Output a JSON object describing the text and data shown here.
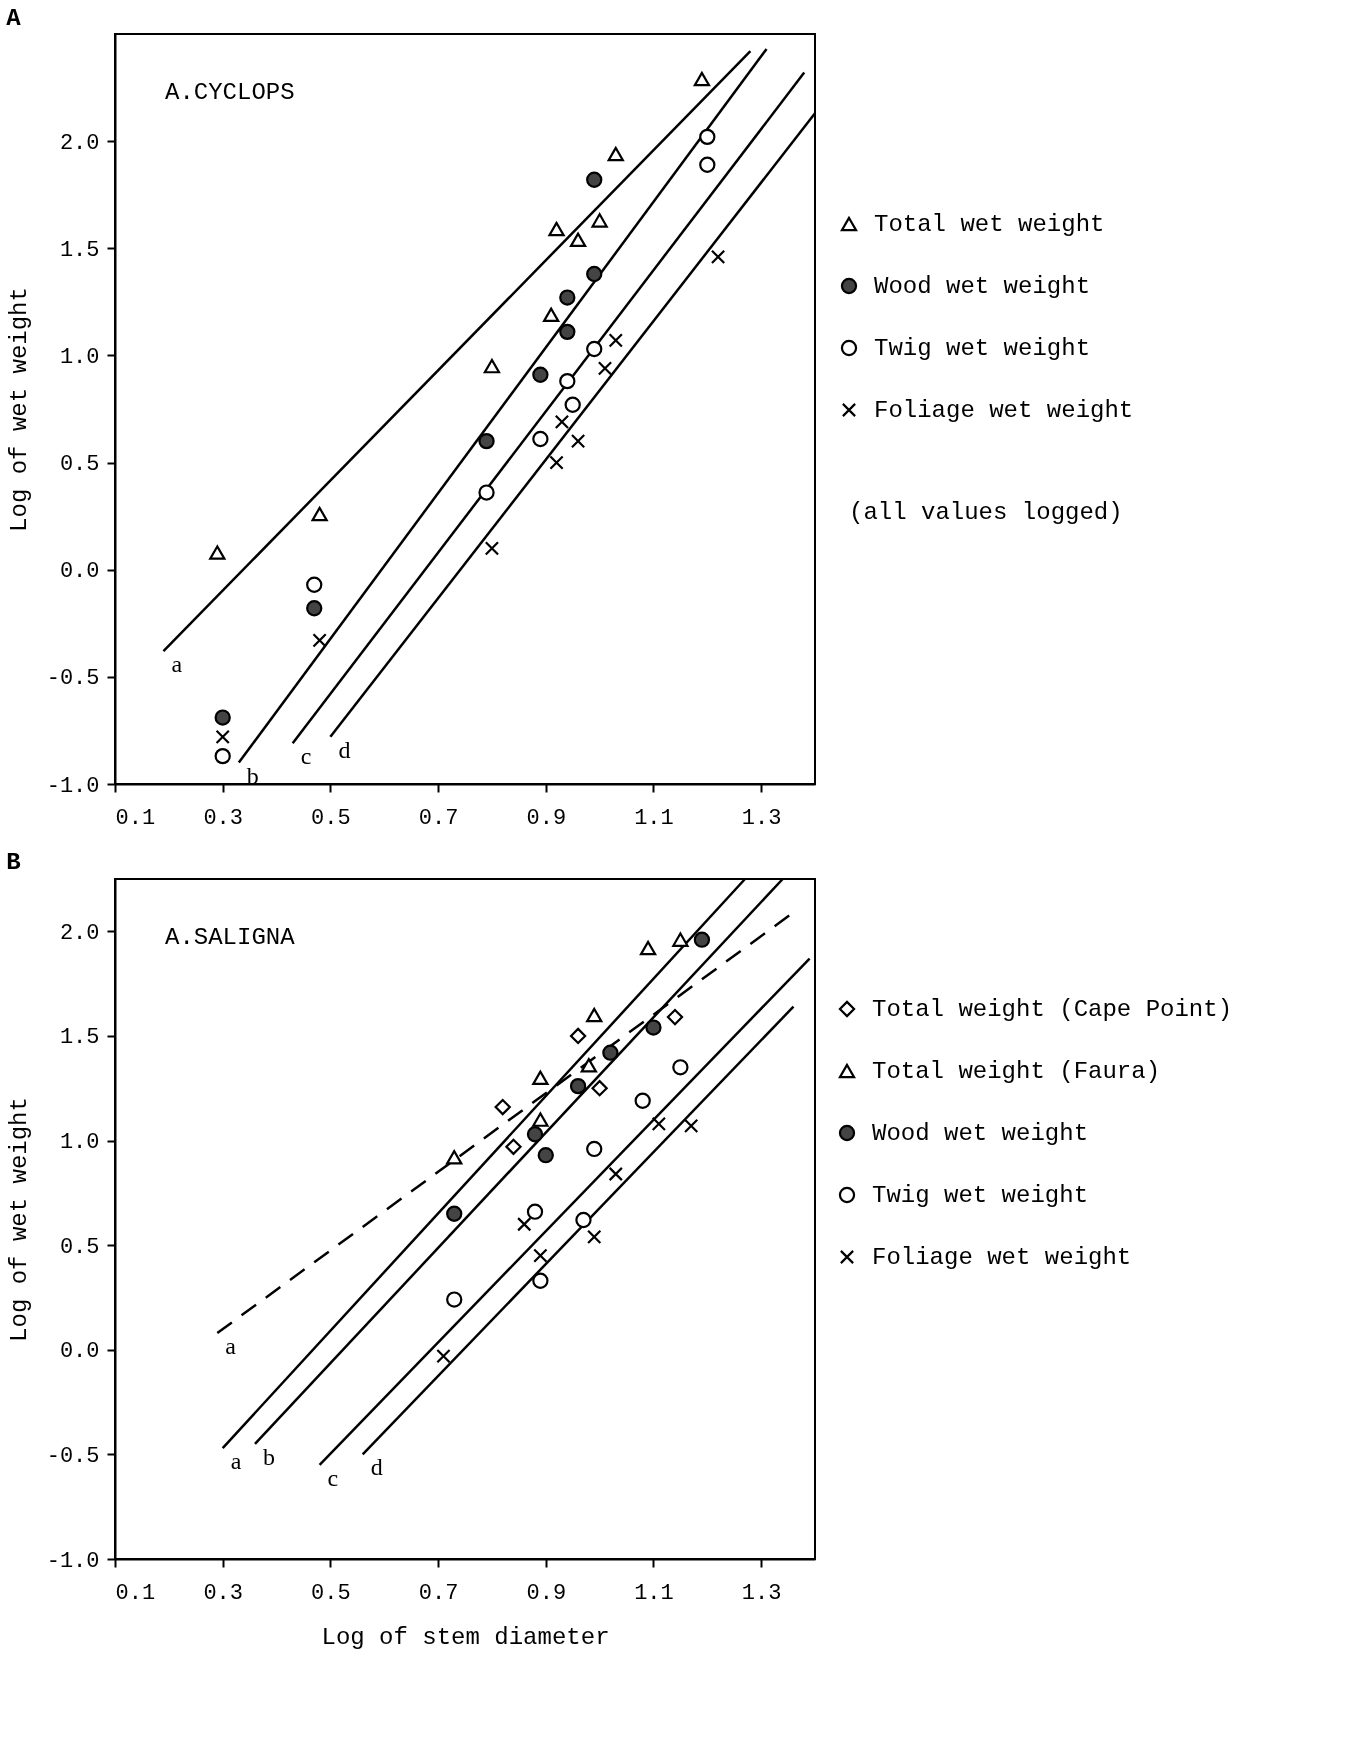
{
  "chart_data": [
    {
      "type": "scatter",
      "title": "A",
      "subtitle": "A.CYCLOPS",
      "ylabel": "Log of wet weight",
      "xlim": [
        0.1,
        1.4
      ],
      "ylim": [
        -1.0,
        2.5
      ],
      "xticks": [
        0.1,
        0.3,
        0.5,
        0.7,
        0.9,
        1.1,
        1.3
      ],
      "yticks": [
        {
          "value": -1.0,
          "label": "-1.0"
        },
        {
          "value": -0.5,
          "label": "-0.5"
        },
        {
          "value": 0,
          "label": "0.0"
        },
        {
          "value": 0.5,
          "label": "0.5"
        },
        {
          "value": 1.0,
          "label": "1.0"
        },
        {
          "value": 1.5,
          "label": "1.5"
        },
        {
          "value": 2.0,
          "label": "2.0"
        }
      ],
      "legend": "right",
      "series": [
        {
          "name": "Total wet weight",
          "marker": "triangle",
          "color": "#ffffff",
          "x": [
            1.19,
            1.03,
            0.92,
            0.96,
            1.0,
            0.91,
            0.8,
            0.29,
            0.48
          ],
          "values": [
            2.29,
            1.94,
            1.59,
            1.54,
            1.63,
            1.19,
            0.95,
            0.08,
            0.26
          ]
        },
        {
          "name": "Wood wet weight",
          "marker": "circle",
          "color": "#444444",
          "x": [
            0.99,
            0.99,
            0.94,
            0.94,
            0.89,
            0.79,
            0.47,
            0.3
          ],
          "values": [
            1.82,
            1.38,
            1.27,
            1.11,
            0.91,
            0.6,
            -0.18,
            -0.69
          ]
        },
        {
          "name": "Twig wet weight",
          "marker": "circle",
          "color": "#ffffff",
          "x": [
            1.2,
            1.2,
            0.99,
            0.94,
            0.95,
            0.89,
            0.79,
            0.47,
            0.3
          ],
          "values": [
            2.02,
            1.89,
            1.03,
            0.88,
            0.77,
            0.61,
            0.36,
            -0.07,
            -0.87
          ]
        },
        {
          "name": "Foliage wet weight",
          "marker": "cross",
          "color": "#000000",
          "x": [
            1.22,
            1.03,
            1.01,
            0.93,
            0.96,
            0.92,
            0.8,
            0.48,
            0.3
          ],
          "values": [
            1.46,
            1.07,
            0.94,
            0.69,
            0.6,
            0.5,
            0.1,
            -0.33,
            -0.78
          ]
        },
        {
          "name": "a",
          "type": "line",
          "line_style": "solid",
          "color": "#000000",
          "x": [
            0.19,
            1.28
          ],
          "values": [
            -0.38,
            2.42
          ]
        },
        {
          "name": "b",
          "type": "line",
          "line_style": "solid",
          "color": "#000000",
          "x": [
            0.33,
            1.31
          ],
          "values": [
            -0.9,
            2.43
          ]
        },
        {
          "name": "c",
          "type": "line",
          "line_style": "solid",
          "color": "#000000",
          "x": [
            0.43,
            1.38
          ],
          "values": [
            -0.81,
            2.32
          ]
        },
        {
          "name": "d",
          "type": "line",
          "line_style": "solid",
          "color": "#000000",
          "x": [
            0.5,
            1.4
          ],
          "values": [
            -0.78,
            2.13
          ]
        }
      ],
      "annotations": [
        "(all values logged)"
      ]
    },
    {
      "type": "scatter",
      "title": "B",
      "subtitle": "A.SALIGNA",
      "xlabel": "Log of stem diameter",
      "ylabel": "Log of wet weight",
      "xlim": [
        0.1,
        1.4
      ],
      "ylim": [
        -1.0,
        2.25
      ],
      "xticks": [
        0.1,
        0.3,
        0.5,
        0.7,
        0.9,
        1.1,
        1.3
      ],
      "yticks": [
        {
          "value": -1.0,
          "label": "-1.0"
        },
        {
          "value": -0.5,
          "label": "-0.5"
        },
        {
          "value": 0,
          "label": "0.0"
        },
        {
          "value": 0.5,
          "label": "0.5"
        },
        {
          "value": 1.0,
          "label": "1.0"
        },
        {
          "value": 1.5,
          "label": "1.5"
        },
        {
          "value": 2.0,
          "label": "2.0"
        }
      ],
      "legend": "right",
      "series": [
        {
          "name": "Total weight (Cape Point)",
          "marker": "diamond",
          "color": "#ffffff",
          "x": [
            0.82,
            0.96,
            0.84,
            1.0,
            1.14
          ],
          "values": [
            1.16,
            1.5,
            0.97,
            1.25,
            1.59
          ]
        },
        {
          "name": "Total weight (Faura)",
          "marker": "triangle",
          "color": "#ffffff",
          "x": [
            1.09,
            1.15,
            0.99,
            0.98,
            0.89,
            0.89,
            0.73
          ],
          "values": [
            1.92,
            1.96,
            1.6,
            1.36,
            1.3,
            1.1,
            0.92
          ]
        },
        {
          "name": "Wood wet weight",
          "marker": "circle",
          "color": "#444444",
          "x": [
            1.19,
            1.1,
            1.02,
            0.96,
            0.88,
            0.9,
            0.73
          ],
          "values": [
            1.96,
            1.54,
            1.42,
            1.26,
            1.03,
            0.93,
            0.65
          ]
        },
        {
          "name": "Twig wet weight",
          "marker": "circle",
          "color": "#ffffff",
          "x": [
            1.15,
            1.08,
            0.99,
            0.88,
            0.97,
            0.73,
            0.89
          ],
          "values": [
            1.35,
            1.19,
            0.96,
            0.66,
            0.62,
            0.24,
            0.33
          ]
        },
        {
          "name": "Foliage wet weight",
          "marker": "cross",
          "color": "#000000",
          "x": [
            1.11,
            1.17,
            1.03,
            0.86,
            0.89,
            0.99,
            0.71
          ],
          "values": [
            1.08,
            1.07,
            0.84,
            0.6,
            0.45,
            0.54,
            -0.03
          ]
        },
        {
          "name": "a",
          "type": "line",
          "line_style": "dashed",
          "color": "#000000",
          "x": [
            0.29,
            1.36
          ],
          "values": [
            0.08,
            2.09
          ]
        },
        {
          "name": "a",
          "type": "line",
          "line_style": "solid",
          "color": "#000000",
          "x": [
            0.3,
            1.27
          ],
          "values": [
            -0.47,
            2.25
          ]
        },
        {
          "name": "b",
          "type": "line",
          "line_style": "solid",
          "color": "#000000",
          "x": [
            0.36,
            1.34
          ],
          "values": [
            -0.45,
            2.25
          ]
        },
        {
          "name": "c",
          "type": "line",
          "line_style": "solid",
          "color": "#000000",
          "x": [
            0.48,
            1.39
          ],
          "values": [
            -0.55,
            1.87
          ]
        },
        {
          "name": "d",
          "type": "line",
          "line_style": "solid",
          "color": "#000000",
          "x": [
            0.56,
            1.36
          ],
          "values": [
            -0.5,
            1.64
          ]
        }
      ]
    }
  ]
}
